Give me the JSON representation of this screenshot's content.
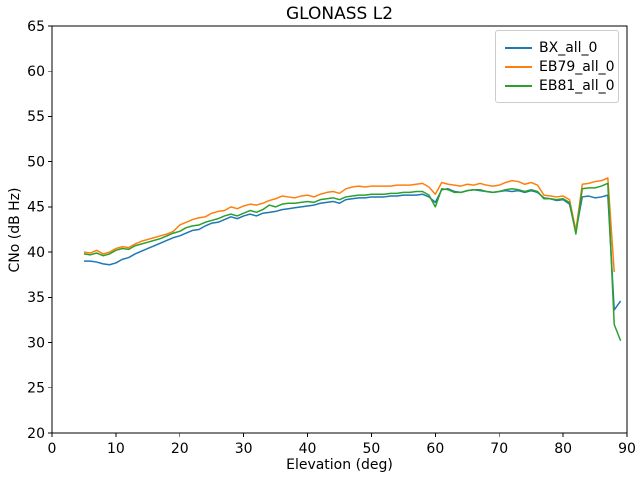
{
  "title": "GLONASS L2",
  "chart_data": {
    "type": "line",
    "title": "GLONASS L2",
    "xlabel": "Elevation (deg)",
    "ylabel": "CNo (dB Hz)",
    "xlim": [
      0,
      90
    ],
    "ylim": [
      20,
      65
    ],
    "xticks": [
      0,
      10,
      20,
      30,
      40,
      50,
      60,
      70,
      80,
      90
    ],
    "yticks": [
      20,
      25,
      30,
      35,
      40,
      45,
      50,
      55,
      60,
      65
    ],
    "grid": false,
    "legend_position": "upper right",
    "x": [
      5,
      6,
      7,
      8,
      9,
      10,
      11,
      12,
      13,
      14,
      15,
      16,
      17,
      18,
      19,
      20,
      21,
      22,
      23,
      24,
      25,
      26,
      27,
      28,
      29,
      30,
      31,
      32,
      33,
      34,
      35,
      36,
      37,
      38,
      39,
      40,
      41,
      42,
      43,
      44,
      45,
      46,
      47,
      48,
      49,
      50,
      51,
      52,
      53,
      54,
      55,
      56,
      57,
      58,
      59,
      60,
      61,
      62,
      63,
      64,
      65,
      66,
      67,
      68,
      69,
      70,
      71,
      72,
      73,
      74,
      75,
      76,
      77,
      78,
      79,
      80,
      81,
      82,
      83,
      84,
      85,
      86,
      87,
      88,
      89
    ],
    "series": [
      {
        "name": "BX_all_0",
        "color": "#1f77b4",
        "values": [
          39.0,
          39.0,
          38.9,
          38.7,
          38.6,
          38.8,
          39.2,
          39.4,
          39.8,
          40.1,
          40.4,
          40.7,
          41.0,
          41.3,
          41.6,
          41.8,
          42.1,
          42.4,
          42.5,
          42.9,
          43.2,
          43.3,
          43.6,
          43.9,
          43.7,
          44.0,
          44.2,
          44.0,
          44.3,
          44.4,
          44.5,
          44.7,
          44.8,
          44.9,
          45.0,
          45.1,
          45.2,
          45.4,
          45.5,
          45.6,
          45.4,
          45.8,
          45.9,
          46.0,
          46.0,
          46.1,
          46.1,
          46.1,
          46.2,
          46.2,
          46.3,
          46.3,
          46.3,
          46.4,
          46.1,
          45.5,
          46.9,
          47.0,
          46.7,
          46.6,
          46.8,
          46.9,
          46.8,
          46.7,
          46.6,
          46.7,
          46.8,
          46.7,
          46.8,
          46.6,
          46.8,
          46.6,
          46.0,
          45.9,
          45.7,
          45.8,
          45.3,
          42.3,
          46.1,
          46.2,
          46.0,
          46.1,
          46.3,
          33.6,
          34.6
        ]
      },
      {
        "name": "EB79_all_0",
        "color": "#ff7f0e",
        "values": [
          40.0,
          39.9,
          40.2,
          39.8,
          40.0,
          40.4,
          40.6,
          40.5,
          40.9,
          41.2,
          41.4,
          41.6,
          41.8,
          42.0,
          42.3,
          43.0,
          43.3,
          43.6,
          43.8,
          43.9,
          44.3,
          44.5,
          44.6,
          45.0,
          44.8,
          45.1,
          45.3,
          45.2,
          45.4,
          45.7,
          45.9,
          46.2,
          46.1,
          46.0,
          46.2,
          46.3,
          46.1,
          46.4,
          46.6,
          46.7,
          46.5,
          47.0,
          47.2,
          47.3,
          47.2,
          47.3,
          47.3,
          47.3,
          47.3,
          47.4,
          47.4,
          47.4,
          47.5,
          47.6,
          47.2,
          46.4,
          47.7,
          47.5,
          47.4,
          47.3,
          47.5,
          47.4,
          47.6,
          47.4,
          47.3,
          47.4,
          47.7,
          47.9,
          47.8,
          47.5,
          47.7,
          47.4,
          46.3,
          46.2,
          46.1,
          46.2,
          45.8,
          42.4,
          47.5,
          47.6,
          47.8,
          47.9,
          48.2,
          37.8,
          null
        ]
      },
      {
        "name": "EB81_all_0",
        "color": "#2ca02c",
        "values": [
          39.8,
          39.7,
          39.9,
          39.6,
          39.8,
          40.2,
          40.4,
          40.3,
          40.7,
          40.9,
          41.1,
          41.3,
          41.5,
          41.8,
          42.1,
          42.3,
          42.7,
          42.9,
          43.0,
          43.3,
          43.5,
          43.7,
          44.0,
          44.2,
          44.0,
          44.3,
          44.6,
          44.4,
          44.7,
          45.2,
          45.0,
          45.3,
          45.4,
          45.4,
          45.5,
          45.6,
          45.5,
          45.8,
          45.9,
          46.0,
          45.8,
          46.1,
          46.2,
          46.3,
          46.3,
          46.4,
          46.4,
          46.4,
          46.5,
          46.5,
          46.6,
          46.6,
          46.7,
          46.7,
          46.3,
          45.0,
          47.0,
          46.9,
          46.6,
          46.6,
          46.8,
          46.9,
          46.9,
          46.7,
          46.6,
          46.7,
          46.9,
          47.0,
          46.9,
          46.7,
          46.9,
          46.7,
          45.9,
          45.9,
          45.8,
          45.9,
          45.5,
          42.0,
          47.0,
          47.1,
          47.1,
          47.3,
          47.6,
          32.0,
          30.2
        ]
      }
    ]
  }
}
